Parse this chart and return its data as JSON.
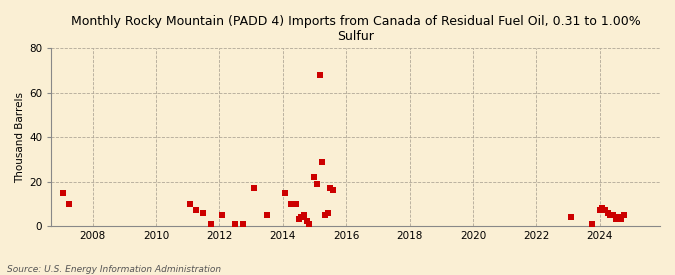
{
  "title": "Monthly Rocky Mountain (PADD 4) Imports from Canada of Residual Fuel Oil, 0.31 to 1.00%\nSulfur",
  "ylabel": "Thousand Barrels",
  "source_text": "Source: U.S. Energy Information Administration",
  "background_color": "#faefd4",
  "plot_background_color": "#faefd4",
  "marker_color": "#cc0000",
  "marker_size": 16,
  "ylim": [
    0,
    80
  ],
  "yticks": [
    0,
    20,
    40,
    60,
    80
  ],
  "xlim_start": 2006.7,
  "xlim_end": 2025.9,
  "xticks": [
    2008,
    2010,
    2012,
    2014,
    2016,
    2018,
    2020,
    2022,
    2024
  ],
  "data_points": [
    [
      2007.08,
      15
    ],
    [
      2007.25,
      10
    ],
    [
      2011.08,
      10
    ],
    [
      2011.25,
      7
    ],
    [
      2011.5,
      6
    ],
    [
      2011.75,
      1
    ],
    [
      2012.08,
      5
    ],
    [
      2012.5,
      1
    ],
    [
      2012.75,
      1
    ],
    [
      2013.08,
      17
    ],
    [
      2013.5,
      5
    ],
    [
      2014.08,
      15
    ],
    [
      2014.25,
      10
    ],
    [
      2014.42,
      10
    ],
    [
      2014.5,
      3
    ],
    [
      2014.58,
      4
    ],
    [
      2014.67,
      5
    ],
    [
      2014.75,
      2
    ],
    [
      2014.83,
      1
    ],
    [
      2015.0,
      22
    ],
    [
      2015.08,
      19
    ],
    [
      2015.17,
      68
    ],
    [
      2015.25,
      29
    ],
    [
      2015.33,
      5
    ],
    [
      2015.42,
      6
    ],
    [
      2015.5,
      17
    ],
    [
      2015.58,
      16
    ],
    [
      2023.08,
      4
    ],
    [
      2023.75,
      1
    ],
    [
      2024.0,
      7
    ],
    [
      2024.08,
      8
    ],
    [
      2024.17,
      7
    ],
    [
      2024.25,
      6
    ],
    [
      2024.33,
      5
    ],
    [
      2024.42,
      5
    ],
    [
      2024.5,
      3
    ],
    [
      2024.58,
      4
    ],
    [
      2024.67,
      3
    ],
    [
      2024.75,
      5
    ]
  ]
}
